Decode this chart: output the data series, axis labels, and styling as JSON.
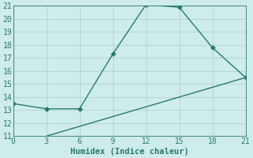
{
  "line1_x": [
    0,
    3,
    6,
    9,
    12,
    15,
    18,
    21
  ],
  "line1_y": [
    13.5,
    13.1,
    13.1,
    17.3,
    21.1,
    20.9,
    17.8,
    15.5
  ],
  "line2_x": [
    3,
    21
  ],
  "line2_y": [
    11.0,
    15.5
  ],
  "color": "#2a7a6a",
  "xlabel": "Humidex (Indice chaleur)",
  "xlim": [
    0,
    21
  ],
  "ylim": [
    11,
    21
  ],
  "xticks": [
    0,
    3,
    6,
    9,
    12,
    15,
    18,
    21
  ],
  "yticks": [
    11,
    12,
    13,
    14,
    15,
    16,
    17,
    18,
    19,
    20,
    21
  ],
  "bg_color": "#ceecea",
  "grid_color": "#aed4d0",
  "markersize": 3.0,
  "linewidth": 1.0,
  "xlabel_fontsize": 7.5,
  "tick_fontsize": 7
}
